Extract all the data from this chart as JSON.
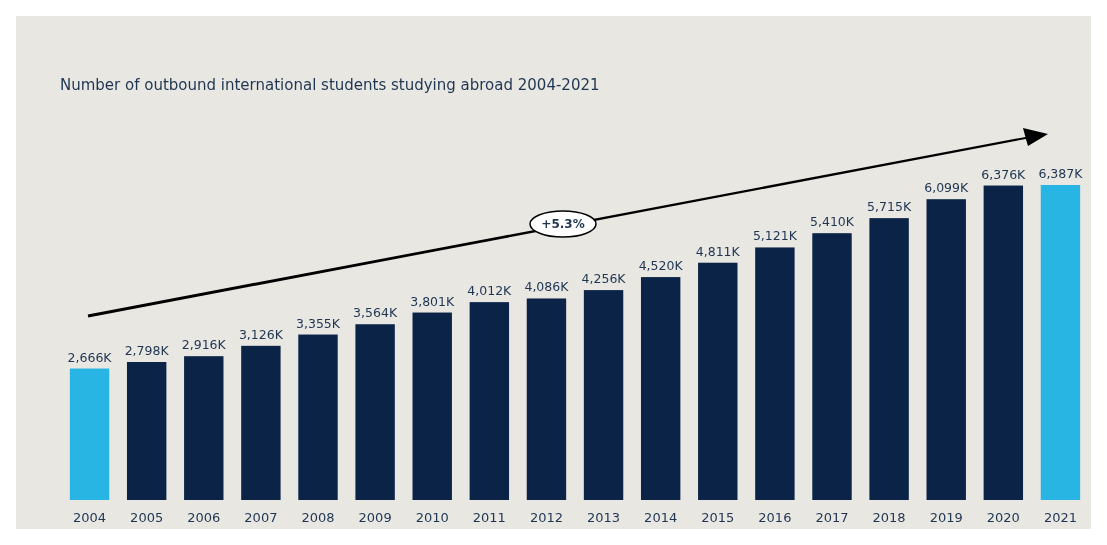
{
  "chart_data": {
    "type": "bar",
    "title": "Number of outbound international students studying abroad 2004-2021",
    "categories": [
      "2004",
      "2005",
      "2006",
      "2007",
      "2008",
      "2009",
      "2010",
      "2011",
      "2012",
      "2013",
      "2014",
      "2015",
      "2016",
      "2017",
      "2018",
      "2019",
      "2020",
      "2021"
    ],
    "values": [
      2666,
      2798,
      2916,
      3126,
      3355,
      3564,
      3801,
      4012,
      4086,
      4256,
      4520,
      4811,
      5121,
      5410,
      5715,
      6099,
      6376,
      6387
    ],
    "value_labels": [
      "2,666K",
      "2,798K",
      "2,916K",
      "3,126K",
      "3,355K",
      "3,564K",
      "3,801K",
      "4,012K",
      "4,086K",
      "4,256K",
      "4,520K",
      "4,811K",
      "5,121K",
      "5,410K",
      "5,715K",
      "6,099K",
      "6,376K",
      "6,387K"
    ],
    "colors": [
      "#29b5e3",
      "#0b2347",
      "#0b2347",
      "#0b2347",
      "#0b2347",
      "#0b2347",
      "#0b2347",
      "#0b2347",
      "#0b2347",
      "#0b2347",
      "#0b2347",
      "#0b2347",
      "#0b2347",
      "#0b2347",
      "#0b2347",
      "#0b2347",
      "#0b2347",
      "#29b5e3"
    ],
    "annotations": [
      "+5.3%"
    ]
  }
}
